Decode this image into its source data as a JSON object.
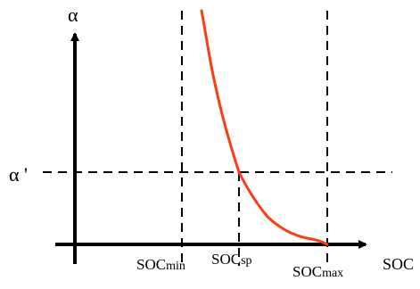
{
  "axes": {
    "y_label": "α",
    "x_label": "SOC",
    "y_level_label": "α '"
  },
  "markers": [
    {
      "key": "soc_min",
      "base": "SOC",
      "sub": "min"
    },
    {
      "key": "soc_sp",
      "base": "SOC",
      "sub": "sp"
    },
    {
      "key": "soc_max",
      "base": "SOC",
      "sub": "max"
    }
  ],
  "colors": {
    "curve": "#ff3b14",
    "axis": "#000000",
    "guide": "#000000"
  }
}
